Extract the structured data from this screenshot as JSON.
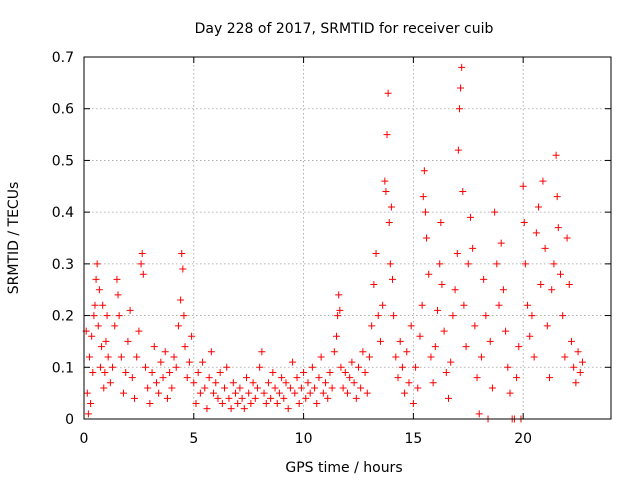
{
  "chart_data": {
    "type": "scatter",
    "title": "Day 228 of 2017, SRMTID for receiver cuib",
    "xlabel": "GPS time / hours",
    "ylabel": "SRMTID / TECUs",
    "xlim": [
      0,
      24
    ],
    "ylim": [
      0,
      0.7
    ],
    "x_ticks": [
      0,
      5,
      10,
      15,
      20
    ],
    "x_tick_labels": [
      "0",
      "5",
      "10",
      "15",
      "20"
    ],
    "y_ticks": [
      0,
      0.1,
      0.2,
      0.3,
      0.4,
      0.5,
      0.6,
      0.7
    ],
    "y_tick_labels": [
      "0",
      "0.1",
      "0.2",
      "0.3",
      "0.4",
      "0.5",
      "0.6",
      "0.7"
    ],
    "grid": true,
    "marker": "+",
    "series": [
      {
        "name": "SRMTID",
        "color": "#ff0000",
        "points": [
          [
            0.1,
            0.17
          ],
          [
            0.15,
            0.05
          ],
          [
            0.2,
            0.01
          ],
          [
            0.25,
            0.12
          ],
          [
            0.3,
            0.03
          ],
          [
            0.35,
            0.16
          ],
          [
            0.4,
            0.09
          ],
          [
            0.45,
            0.2
          ],
          [
            0.5,
            0.22
          ],
          [
            0.55,
            0.27
          ],
          [
            0.6,
            0.3
          ],
          [
            0.65,
            0.18
          ],
          [
            0.7,
            0.25
          ],
          [
            0.75,
            0.1
          ],
          [
            0.8,
            0.14
          ],
          [
            0.85,
            0.22
          ],
          [
            0.9,
            0.06
          ],
          [
            0.95,
            0.09
          ],
          [
            1.0,
            0.15
          ],
          [
            1.05,
            0.2
          ],
          [
            1.1,
            0.12
          ],
          [
            1.2,
            0.07
          ],
          [
            1.3,
            0.1
          ],
          [
            1.4,
            0.18
          ],
          [
            1.5,
            0.27
          ],
          [
            1.55,
            0.24
          ],
          [
            1.6,
            0.2
          ],
          [
            1.7,
            0.12
          ],
          [
            1.8,
            0.05
          ],
          [
            1.9,
            0.09
          ],
          [
            2.0,
            0.15
          ],
          [
            2.1,
            0.21
          ],
          [
            2.2,
            0.08
          ],
          [
            2.3,
            0.04
          ],
          [
            2.4,
            0.12
          ],
          [
            2.5,
            0.17
          ],
          [
            2.6,
            0.3
          ],
          [
            2.65,
            0.32
          ],
          [
            2.7,
            0.28
          ],
          [
            2.8,
            0.1
          ],
          [
            2.9,
            0.06
          ],
          [
            3.0,
            0.03
          ],
          [
            3.1,
            0.09
          ],
          [
            3.2,
            0.14
          ],
          [
            3.3,
            0.07
          ],
          [
            3.4,
            0.05
          ],
          [
            3.5,
            0.11
          ],
          [
            3.6,
            0.08
          ],
          [
            3.7,
            0.13
          ],
          [
            3.8,
            0.04
          ],
          [
            3.9,
            0.09
          ],
          [
            4.0,
            0.06
          ],
          [
            4.1,
            0.12
          ],
          [
            4.2,
            0.1
          ],
          [
            4.3,
            0.18
          ],
          [
            4.4,
            0.23
          ],
          [
            4.45,
            0.32
          ],
          [
            4.5,
            0.29
          ],
          [
            4.55,
            0.2
          ],
          [
            4.6,
            0.14
          ],
          [
            4.7,
            0.08
          ],
          [
            4.8,
            0.11
          ],
          [
            4.9,
            0.16
          ],
          [
            5.0,
            0.07
          ],
          [
            5.1,
            0.03
          ],
          [
            5.2,
            0.09
          ],
          [
            5.3,
            0.05
          ],
          [
            5.4,
            0.11
          ],
          [
            5.5,
            0.06
          ],
          [
            5.6,
            0.02
          ],
          [
            5.7,
            0.08
          ],
          [
            5.8,
            0.13
          ],
          [
            5.9,
            0.05
          ],
          [
            6.0,
            0.07
          ],
          [
            6.1,
            0.04
          ],
          [
            6.2,
            0.09
          ],
          [
            6.3,
            0.03
          ],
          [
            6.4,
            0.06
          ],
          [
            6.5,
            0.1
          ],
          [
            6.6,
            0.04
          ],
          [
            6.7,
            0.02
          ],
          [
            6.8,
            0.07
          ],
          [
            6.9,
            0.05
          ],
          [
            7.0,
            0.03
          ],
          [
            7.1,
            0.06
          ],
          [
            7.2,
            0.04
          ],
          [
            7.3,
            0.02
          ],
          [
            7.4,
            0.08
          ],
          [
            7.5,
            0.05
          ],
          [
            7.6,
            0.03
          ],
          [
            7.7,
            0.07
          ],
          [
            7.8,
            0.04
          ],
          [
            7.9,
            0.06
          ],
          [
            8.0,
            0.1
          ],
          [
            8.1,
            0.13
          ],
          [
            8.2,
            0.05
          ],
          [
            8.3,
            0.03
          ],
          [
            8.4,
            0.07
          ],
          [
            8.5,
            0.04
          ],
          [
            8.6,
            0.09
          ],
          [
            8.7,
            0.06
          ],
          [
            8.8,
            0.03
          ],
          [
            8.9,
            0.05
          ],
          [
            9.0,
            0.08
          ],
          [
            9.1,
            0.04
          ],
          [
            9.2,
            0.07
          ],
          [
            9.3,
            0.02
          ],
          [
            9.4,
            0.06
          ],
          [
            9.5,
            0.11
          ],
          [
            9.6,
            0.05
          ],
          [
            9.7,
            0.08
          ],
          [
            9.8,
            0.03
          ],
          [
            9.9,
            0.06
          ],
          [
            10.0,
            0.09
          ],
          [
            10.1,
            0.04
          ],
          [
            10.2,
            0.07
          ],
          [
            10.3,
            0.05
          ],
          [
            10.4,
            0.1
          ],
          [
            10.5,
            0.06
          ],
          [
            10.6,
            0.03
          ],
          [
            10.7,
            0.08
          ],
          [
            10.8,
            0.12
          ],
          [
            10.9,
            0.05
          ],
          [
            11.0,
            0.07
          ],
          [
            11.1,
            0.04
          ],
          [
            11.2,
            0.09
          ],
          [
            11.3,
            0.06
          ],
          [
            11.4,
            0.13
          ],
          [
            11.5,
            0.16
          ],
          [
            11.55,
            0.2
          ],
          [
            11.6,
            0.24
          ],
          [
            11.65,
            0.21
          ],
          [
            11.7,
            0.1
          ],
          [
            11.8,
            0.06
          ],
          [
            11.9,
            0.09
          ],
          [
            12.0,
            0.05
          ],
          [
            12.1,
            0.08
          ],
          [
            12.2,
            0.11
          ],
          [
            12.3,
            0.07
          ],
          [
            12.4,
            0.04
          ],
          [
            12.5,
            0.1
          ],
          [
            12.6,
            0.06
          ],
          [
            12.7,
            0.13
          ],
          [
            12.8,
            0.09
          ],
          [
            12.9,
            0.05
          ],
          [
            13.0,
            0.12
          ],
          [
            13.1,
            0.18
          ],
          [
            13.2,
            0.26
          ],
          [
            13.3,
            0.32
          ],
          [
            13.4,
            0.2
          ],
          [
            13.5,
            0.15
          ],
          [
            13.6,
            0.22
          ],
          [
            13.7,
            0.46
          ],
          [
            13.75,
            0.44
          ],
          [
            13.8,
            0.55
          ],
          [
            13.85,
            0.63
          ],
          [
            13.9,
            0.38
          ],
          [
            13.95,
            0.3
          ],
          [
            14.0,
            0.41
          ],
          [
            14.05,
            0.27
          ],
          [
            14.1,
            0.2
          ],
          [
            14.2,
            0.12
          ],
          [
            14.3,
            0.08
          ],
          [
            14.4,
            0.15
          ],
          [
            14.5,
            0.1
          ],
          [
            14.6,
            0.05
          ],
          [
            14.7,
            0.13
          ],
          [
            14.8,
            0.07
          ],
          [
            14.9,
            0.18
          ],
          [
            15.0,
            0.03
          ],
          [
            15.1,
            0.1
          ],
          [
            15.2,
            0.06
          ],
          [
            15.3,
            0.16
          ],
          [
            15.4,
            0.22
          ],
          [
            15.45,
            0.43
          ],
          [
            15.5,
            0.48
          ],
          [
            15.55,
            0.4
          ],
          [
            15.6,
            0.35
          ],
          [
            15.7,
            0.28
          ],
          [
            15.8,
            0.12
          ],
          [
            15.9,
            0.07
          ],
          [
            16.0,
            0.14
          ],
          [
            16.1,
            0.21
          ],
          [
            16.2,
            0.3
          ],
          [
            16.25,
            0.38
          ],
          [
            16.3,
            0.26
          ],
          [
            16.4,
            0.17
          ],
          [
            16.5,
            0.09
          ],
          [
            16.6,
            0.04
          ],
          [
            16.7,
            0.11
          ],
          [
            16.8,
            0.2
          ],
          [
            16.9,
            0.25
          ],
          [
            17.0,
            0.32
          ],
          [
            17.05,
            0.52
          ],
          [
            17.1,
            0.6
          ],
          [
            17.15,
            0.64
          ],
          [
            17.2,
            0.68
          ],
          [
            17.25,
            0.44
          ],
          [
            17.3,
            0.22
          ],
          [
            17.4,
            0.14
          ],
          [
            17.5,
            0.3
          ],
          [
            17.6,
            0.39
          ],
          [
            17.7,
            0.33
          ],
          [
            17.8,
            0.18
          ],
          [
            17.9,
            0.08
          ],
          [
            18.0,
            0.01
          ],
          [
            18.1,
            0.12
          ],
          [
            18.2,
            0.27
          ],
          [
            18.3,
            0.2
          ],
          [
            18.4,
            0.0
          ],
          [
            18.5,
            0.15
          ],
          [
            18.6,
            0.06
          ],
          [
            18.7,
            0.4
          ],
          [
            18.8,
            0.3
          ],
          [
            18.9,
            0.22
          ],
          [
            19.0,
            0.34
          ],
          [
            19.1,
            0.25
          ],
          [
            19.2,
            0.17
          ],
          [
            19.3,
            0.1
          ],
          [
            19.4,
            0.05
          ],
          [
            19.5,
            0.0
          ],
          [
            19.6,
            0.0
          ],
          [
            19.7,
            0.08
          ],
          [
            19.8,
            0.14
          ],
          [
            19.9,
            0.0
          ],
          [
            20.0,
            0.45
          ],
          [
            20.05,
            0.38
          ],
          [
            20.1,
            0.3
          ],
          [
            20.2,
            0.22
          ],
          [
            20.3,
            0.16
          ],
          [
            20.4,
            0.2
          ],
          [
            20.5,
            0.12
          ],
          [
            20.6,
            0.36
          ],
          [
            20.7,
            0.41
          ],
          [
            20.8,
            0.26
          ],
          [
            20.9,
            0.46
          ],
          [
            21.0,
            0.33
          ],
          [
            21.1,
            0.18
          ],
          [
            21.2,
            0.08
          ],
          [
            21.3,
            0.25
          ],
          [
            21.4,
            0.3
          ],
          [
            21.5,
            0.51
          ],
          [
            21.55,
            0.43
          ],
          [
            21.6,
            0.37
          ],
          [
            21.7,
            0.28
          ],
          [
            21.8,
            0.2
          ],
          [
            21.9,
            0.12
          ],
          [
            22.0,
            0.35
          ],
          [
            22.1,
            0.26
          ],
          [
            22.2,
            0.15
          ],
          [
            22.3,
            0.1
          ],
          [
            22.4,
            0.07
          ],
          [
            22.5,
            0.13
          ],
          [
            22.6,
            0.09
          ],
          [
            22.7,
            0.11
          ]
        ]
      }
    ]
  }
}
